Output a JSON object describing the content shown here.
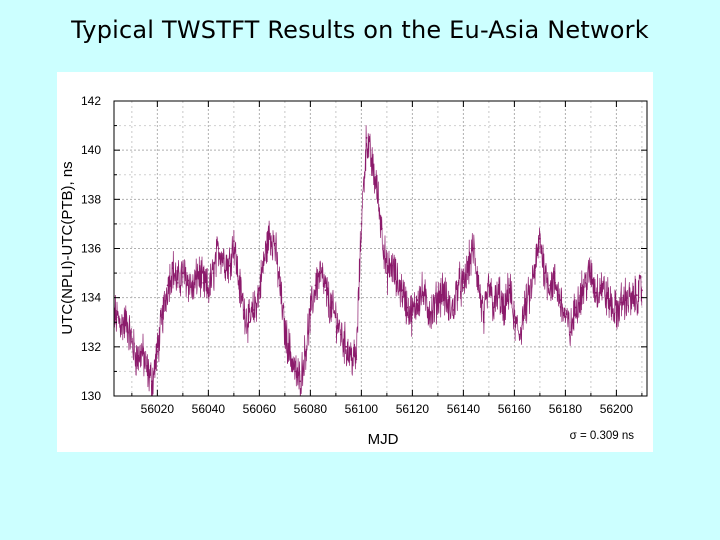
{
  "slide": {
    "title": "Typical TWSTFT Results on the Eu-Asia Network"
  },
  "chart_data": {
    "type": "line",
    "title": "",
    "xlabel": "MJD",
    "ylabel": "UTC(NPLI)-UTC(PTB), ns",
    "xlim": [
      56003,
      56212
    ],
    "ylim": [
      130,
      142
    ],
    "xticks": [
      56020,
      56040,
      56060,
      56080,
      56100,
      56120,
      56140,
      56160,
      56180,
      56200
    ],
    "yticks": [
      130,
      132,
      134,
      136,
      138,
      140,
      142
    ],
    "grid": true,
    "annotation": "σ = 0.309 ns",
    "series_color": "#8b1a6b",
    "series": [
      {
        "x": [
          56002,
          56004,
          56006,
          56008,
          56010,
          56012,
          56014,
          56016,
          56018,
          56020,
          56022,
          56024,
          56026,
          56028,
          56030,
          56032,
          56034,
          56036,
          56038,
          56040,
          56042,
          56044,
          56046,
          56048,
          56050,
          56052,
          56054,
          56056,
          56058,
          56060,
          56062,
          56064,
          56066,
          56068,
          56070,
          56072,
          56074,
          56076,
          56078,
          56080,
          56082,
          56084,
          56086,
          56088,
          56090,
          56092,
          56094,
          56096,
          56098,
          56100,
          56102,
          56104,
          56106,
          56108,
          56110,
          56112,
          56114,
          56116,
          56118,
          56120,
          56122,
          56124,
          56126,
          56128,
          56130,
          56132,
          56134,
          56136,
          56138,
          56140,
          56142,
          56144,
          56146,
          56148,
          56150,
          56152,
          56154,
          56156,
          56158,
          56160,
          56162,
          56164,
          56166,
          56168,
          56170,
          56172,
          56174,
          56176,
          56178,
          56180,
          56182,
          56184,
          56186,
          56188,
          56190,
          56192,
          56194,
          56196,
          56198,
          56200,
          56202,
          56204,
          56206,
          56208,
          56210
        ],
        "y": [
          133.6,
          133.2,
          132.9,
          133.0,
          132.2,
          131.5,
          131.8,
          131.0,
          130.6,
          131.8,
          133.2,
          134.5,
          135.2,
          134.6,
          135.0,
          134.7,
          134.3,
          135.0,
          134.6,
          134.3,
          135.0,
          136.0,
          135.6,
          135.3,
          136.3,
          134.6,
          133.5,
          133.0,
          133.5,
          134.3,
          135.6,
          136.6,
          136.2,
          134.5,
          132.6,
          131.8,
          131.0,
          130.6,
          131.8,
          133.3,
          134.5,
          135.0,
          134.3,
          133.6,
          133.2,
          132.5,
          132.0,
          131.6,
          131.5,
          137.0,
          140.5,
          139.5,
          138.5,
          136.8,
          135.0,
          135.3,
          134.6,
          134.3,
          133.6,
          133.3,
          133.9,
          134.2,
          133.6,
          133.4,
          134.0,
          134.3,
          133.6,
          133.5,
          134.6,
          134.4,
          135.3,
          136.0,
          134.5,
          133.0,
          134.5,
          133.6,
          134.2,
          133.2,
          134.5,
          133.0,
          132.5,
          133.5,
          134.1,
          135.1,
          136.4,
          135.0,
          134.5,
          134.6,
          133.9,
          133.2,
          132.6,
          133.6,
          134.2,
          134.6,
          135.0,
          134.2,
          134.5,
          134.1,
          133.7,
          133.4,
          133.8,
          134.0,
          133.8,
          134.1,
          134.3
        ]
      }
    ]
  }
}
